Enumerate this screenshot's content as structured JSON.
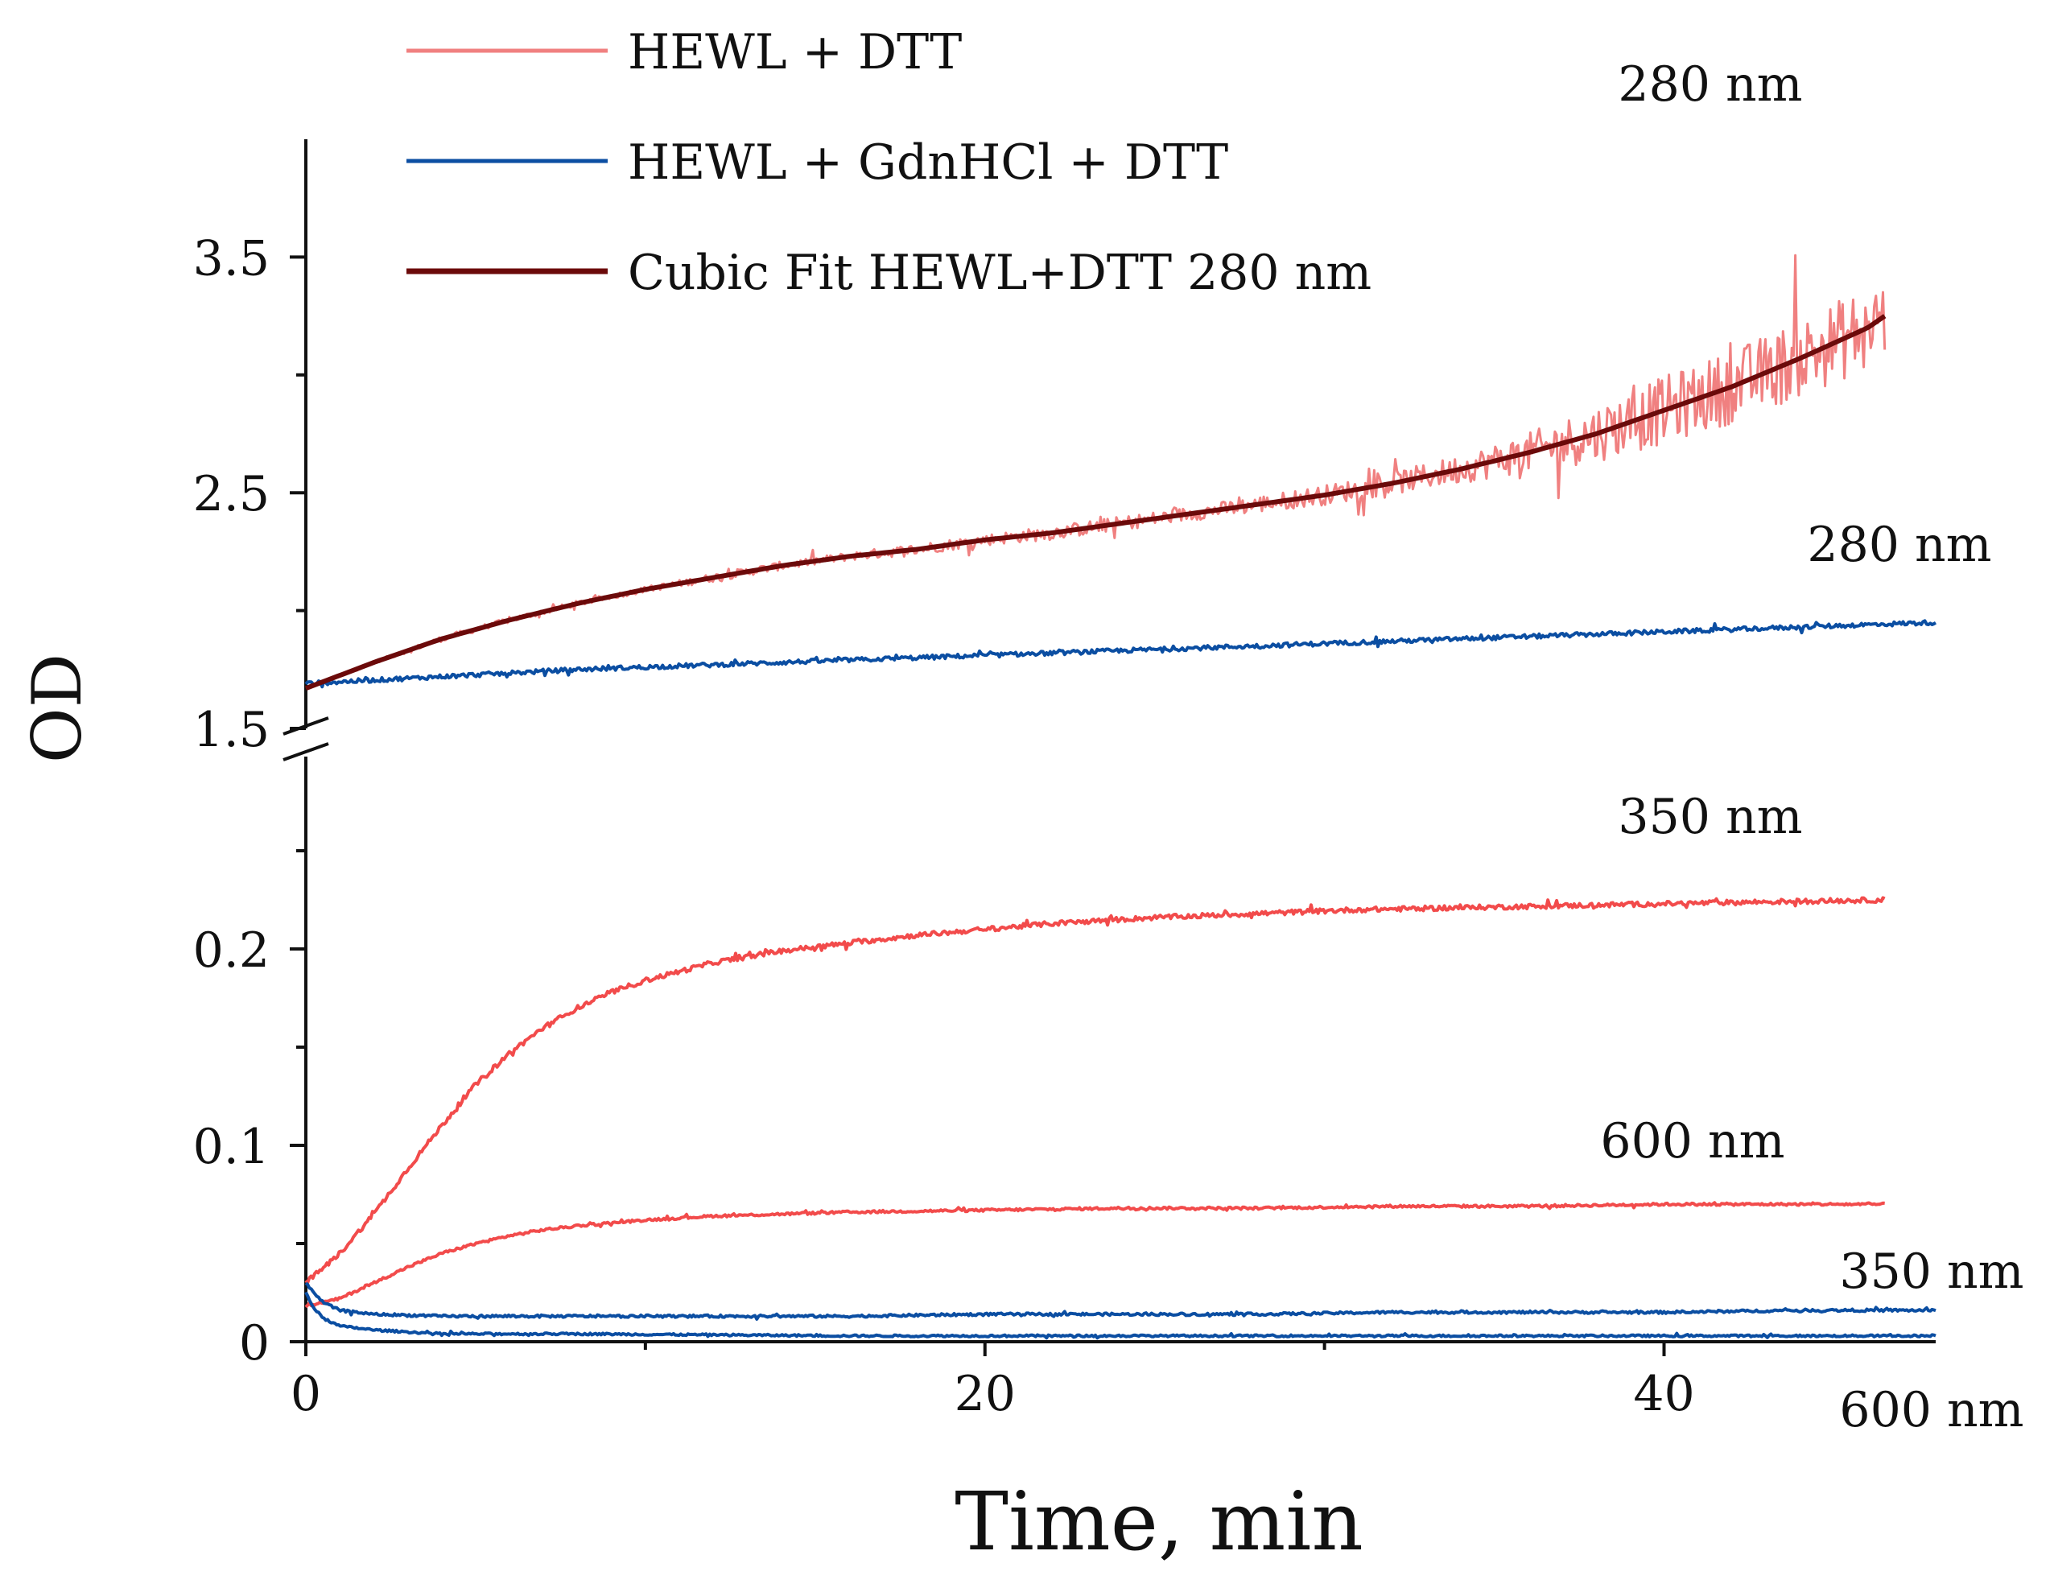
{
  "chart_data": {
    "type": "line",
    "title": "",
    "xlabel": "Time, min",
    "ylabel": "OD",
    "xlim": [
      0,
      48
    ],
    "x_ticks": [
      0,
      20,
      40
    ],
    "x_minor_ticks": [
      10,
      30
    ],
    "y_axis_break": true,
    "upper_panel": {
      "ylim": [
        1.5,
        4.0
      ],
      "y_ticks": [
        1.5,
        2.5,
        3.5
      ],
      "y_tick_labels": [
        "1.5",
        "2.5",
        "3.5"
      ],
      "y_minor_ticks": [
        2.0,
        3.0
      ]
    },
    "lower_panel": {
      "ylim": [
        0,
        0.3
      ],
      "y_ticks": [
        0,
        0.1,
        0.2
      ],
      "y_tick_labels": [
        "0",
        "0.1",
        "0.2"
      ],
      "y_minor_ticks": [
        0.05,
        0.15,
        0.25
      ]
    },
    "legend": {
      "placement": "top-left",
      "entries": [
        {
          "label": "HEWL + DTT",
          "color": "#f08080"
        },
        {
          "label": "HEWL + GdnHCl + DTT",
          "color": "#0b4ea2"
        },
        {
          "label": "Cubic Fit HEWL+DTT 280 nm",
          "color": "#6b0a0a"
        }
      ]
    },
    "series": [
      {
        "name": "HEWL + DTT",
        "wavelength": "280 nm",
        "panel": "upper",
        "color": "#f08080",
        "x": [
          0,
          2,
          4,
          6,
          8,
          10,
          12,
          14,
          16,
          18,
          20,
          22,
          24,
          26,
          28,
          30,
          32,
          34,
          36,
          38,
          40,
          42,
          44,
          46,
          46.5
        ],
        "y": [
          1.67,
          1.78,
          1.88,
          1.96,
          2.03,
          2.09,
          2.14,
          2.19,
          2.23,
          2.26,
          2.3,
          2.33,
          2.37,
          2.41,
          2.45,
          2.49,
          2.54,
          2.6,
          2.67,
          2.75,
          2.85,
          2.95,
          3.07,
          3.2,
          3.25
        ],
        "noise_envelope": [
          0.01,
          0.01,
          0.02,
          0.02,
          0.02,
          0.02,
          0.03,
          0.03,
          0.03,
          0.04,
          0.04,
          0.05,
          0.05,
          0.05,
          0.06,
          0.07,
          0.08,
          0.1,
          0.14,
          0.2,
          0.24,
          0.26,
          0.28,
          0.3,
          0.3
        ]
      },
      {
        "name": "Cubic Fit HEWL+DTT 280 nm",
        "panel": "upper",
        "color": "#6b0a0a",
        "x": [
          0,
          2,
          4,
          6,
          8,
          10,
          12,
          14,
          16,
          18,
          20,
          22,
          24,
          26,
          28,
          30,
          32,
          34,
          36,
          38,
          40,
          42,
          44,
          46,
          46.5
        ],
        "y": [
          1.67,
          1.78,
          1.88,
          1.96,
          2.03,
          2.09,
          2.14,
          2.19,
          2.23,
          2.26,
          2.3,
          2.33,
          2.37,
          2.41,
          2.45,
          2.49,
          2.54,
          2.6,
          2.67,
          2.75,
          2.85,
          2.95,
          3.07,
          3.2,
          3.25
        ]
      },
      {
        "name": "HEWL + GdnHCl + DTT",
        "wavelength": "280 nm",
        "panel": "upper",
        "color": "#0b4ea2",
        "x": [
          0,
          4,
          8,
          12,
          16,
          20,
          24,
          28,
          32,
          36,
          40,
          44,
          48
        ],
        "y": [
          1.69,
          1.72,
          1.75,
          1.77,
          1.79,
          1.81,
          1.83,
          1.85,
          1.87,
          1.89,
          1.91,
          1.93,
          1.95
        ],
        "noise_envelope": [
          0.015,
          0.015,
          0.015,
          0.015,
          0.015,
          0.015,
          0.015,
          0.015,
          0.015,
          0.015,
          0.015,
          0.015,
          0.015
        ]
      },
      {
        "name": "HEWL + DTT",
        "wavelength": "350 nm",
        "panel": "lower",
        "color": "#f24b4b",
        "x": [
          0,
          1,
          2,
          3,
          4,
          5,
          6,
          7,
          8,
          9,
          10,
          12,
          14,
          16,
          18,
          20,
          22,
          25,
          28,
          31,
          34,
          37,
          40,
          43,
          46.5
        ],
        "y": [
          0.03,
          0.045,
          0.065,
          0.088,
          0.11,
          0.131,
          0.147,
          0.16,
          0.17,
          0.178,
          0.184,
          0.193,
          0.199,
          0.203,
          0.207,
          0.21,
          0.213,
          0.216,
          0.218,
          0.22,
          0.221,
          0.222,
          0.223,
          0.224,
          0.225
        ],
        "noise_envelope": [
          0.002,
          0.002,
          0.002,
          0.002,
          0.002,
          0.002,
          0.002,
          0.002,
          0.002,
          0.002,
          0.002,
          0.002,
          0.002,
          0.002,
          0.002,
          0.002,
          0.002,
          0.002,
          0.002,
          0.002,
          0.002,
          0.002,
          0.002,
          0.002,
          0.002
        ]
      },
      {
        "name": "HEWL + DTT",
        "wavelength": "600 nm",
        "panel": "lower",
        "color": "#f24b4b",
        "x": [
          0,
          1,
          2,
          3,
          4,
          5,
          6,
          7,
          8,
          10,
          12,
          14,
          16,
          20,
          24,
          28,
          32,
          36,
          40,
          44,
          46.5
        ],
        "y": [
          0.018,
          0.022,
          0.03,
          0.038,
          0.045,
          0.05,
          0.054,
          0.057,
          0.059,
          0.062,
          0.064,
          0.065,
          0.066,
          0.067,
          0.068,
          0.068,
          0.069,
          0.069,
          0.07,
          0.07,
          0.07
        ],
        "noise_envelope": [
          0.001,
          0.001,
          0.001,
          0.001,
          0.001,
          0.001,
          0.001,
          0.001,
          0.001,
          0.001,
          0.001,
          0.001,
          0.001,
          0.001,
          0.001,
          0.001,
          0.001,
          0.001,
          0.001,
          0.001,
          0.001
        ]
      },
      {
        "name": "HEWL + GdnHCl + DTT",
        "wavelength": "350 nm",
        "panel": "lower",
        "color": "#0b4ea2",
        "x": [
          0,
          0.2,
          0.5,
          1,
          2,
          4,
          8,
          12,
          16,
          20,
          24,
          28,
          32,
          36,
          40,
          44,
          48
        ],
        "y": [
          0.03,
          0.026,
          0.02,
          0.016,
          0.014,
          0.013,
          0.013,
          0.013,
          0.013,
          0.014,
          0.014,
          0.014,
          0.015,
          0.015,
          0.015,
          0.016,
          0.016
        ],
        "noise_envelope": [
          0.001,
          0.001,
          0.001,
          0.001,
          0.001,
          0.001,
          0.001,
          0.001,
          0.001,
          0.001,
          0.001,
          0.001,
          0.001,
          0.001,
          0.001,
          0.001,
          0.001
        ]
      },
      {
        "name": "HEWL + GdnHCl + DTT",
        "wavelength": "600 nm",
        "panel": "lower",
        "color": "#0b4ea2",
        "x": [
          0,
          0.2,
          0.5,
          1,
          2,
          3,
          4,
          8,
          16,
          24,
          32,
          40,
          48
        ],
        "y": [
          0.025,
          0.018,
          0.012,
          0.008,
          0.006,
          0.005,
          0.004,
          0.004,
          0.003,
          0.003,
          0.003,
          0.003,
          0.003
        ],
        "noise_envelope": [
          0.0008,
          0.0008,
          0.0008,
          0.0008,
          0.0008,
          0.0008,
          0.0008,
          0.0008,
          0.0008,
          0.0008,
          0.0008,
          0.0008,
          0.0008
        ]
      }
    ],
    "annotations": [
      {
        "text": "280 nm",
        "series_ref": "HEWL + DTT 280 nm"
      },
      {
        "text": "280 nm",
        "series_ref": "HEWL + GdnHCl + DTT 280 nm"
      },
      {
        "text": "350 nm",
        "series_ref": "HEWL + DTT 350 nm"
      },
      {
        "text": "600 nm",
        "series_ref": "HEWL + DTT 600 nm"
      },
      {
        "text": "350 nm",
        "series_ref": "HEWL + GdnHCl + DTT 350 nm"
      },
      {
        "text": "600 nm",
        "series_ref": "HEWL + GdnHCl + DTT 600 nm"
      }
    ]
  }
}
